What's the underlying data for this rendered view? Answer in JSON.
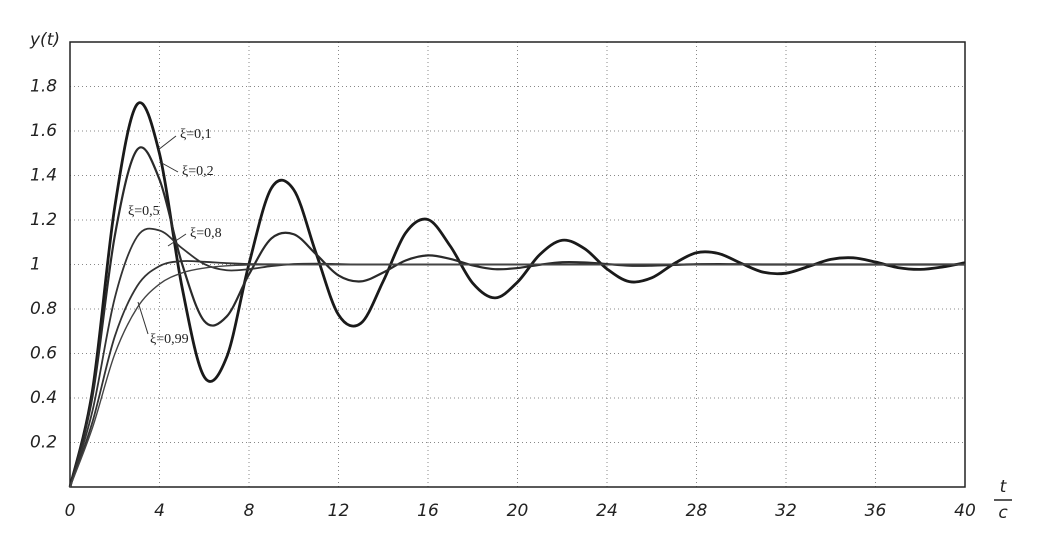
{
  "chart_data": {
    "type": "line",
    "y_label": "y(t)",
    "x_label_top": "t",
    "x_label_bottom": "c",
    "x": [
      0,
      1,
      2,
      3,
      4,
      5,
      6,
      7,
      8,
      9,
      10,
      11,
      12,
      13,
      14,
      15,
      16,
      17,
      18,
      19,
      20,
      21,
      22,
      23,
      24,
      25,
      26,
      27,
      28,
      29,
      30,
      31,
      32,
      33,
      34,
      35,
      36,
      37,
      38,
      39,
      40
    ],
    "series": [
      {
        "name": "ξ=0,1",
        "color": "#1a1a1a",
        "values": [
          0,
          0.431,
          1.258,
          1.72,
          1.498,
          0.902,
          0.495,
          0.583,
          1.003,
          1.343,
          1.336,
          1.05,
          0.774,
          0.736,
          0.925,
          1.142,
          1.202,
          1.082,
          0.916,
          0.85,
          0.921,
          1.045,
          1.109,
          1.071,
          0.98,
          0.923,
          0.94,
          1.004,
          1.053,
          1.049,
          1.005,
          0.965,
          0.961,
          0.991,
          1.023,
          1.03,
          1.011,
          0.986,
          0.978,
          0.989,
          1.008
        ]
      },
      {
        "name": "ξ=0,2",
        "color": "#2a2a2a",
        "values": [
          0,
          0.405,
          1.128,
          1.516,
          1.382,
          1.006,
          0.746,
          0.766,
          0.956,
          1.117,
          1.136,
          1.046,
          0.951,
          0.924,
          0.964,
          1.018,
          1.041,
          1.025,
          0.996,
          0.979,
          0.984,
          0.999,
          1.01,
          1.009,
          1.002,
          0.995,
          0.995,
          0.998,
          1.001,
          1.002,
          1.001,
          1,
          1,
          1,
          1,
          1,
          1,
          1,
          1,
          1,
          1
        ]
      },
      {
        "name": "ξ=0,5",
        "color": "#333333",
        "values": [
          0,
          0.34,
          0.849,
          1.125,
          1.153,
          1.074,
          1.002,
          0.974,
          0.979,
          0.993,
          1.002,
          1.004,
          1.002,
          1,
          1,
          1,
          1,
          1,
          1,
          1,
          1,
          1,
          1,
          1,
          1,
          1,
          1,
          1,
          1,
          1,
          1,
          1,
          1,
          1,
          1,
          1,
          1,
          1,
          1,
          1,
          1
        ]
      },
      {
        "name": "ξ=0,8",
        "color": "#333333",
        "values": [
          0,
          0.291,
          0.676,
          0.903,
          0.993,
          1.015,
          1.012,
          1.006,
          1.002,
          1.001,
          1,
          1,
          1,
          1,
          1,
          1,
          1,
          1,
          1,
          1,
          1,
          1,
          1,
          1,
          1,
          1,
          1,
          1,
          1,
          1,
          1,
          1,
          1,
          1,
          1,
          1,
          1,
          1,
          1,
          1,
          1
        ]
      },
      {
        "name": "ξ=0,99",
        "color": "#444444",
        "values": [
          0,
          0.265,
          0.597,
          0.805,
          0.912,
          0.962,
          0.984,
          0.994,
          0.998,
          0.999,
          1,
          1,
          1,
          1,
          1,
          1,
          1,
          1,
          1,
          1,
          1,
          1,
          1,
          1,
          1,
          1,
          1,
          1,
          1,
          1,
          1,
          1,
          1,
          1,
          1,
          1,
          1,
          1,
          1,
          1,
          1
        ]
      }
    ],
    "xlim": [
      0,
      40
    ],
    "xticks": [
      0,
      4,
      8,
      12,
      16,
      20,
      24,
      28,
      32,
      36,
      40
    ],
    "ylim": [
      0,
      2
    ],
    "yticks": [
      0.2,
      0.4,
      0.6,
      0.8,
      1,
      1.2,
      1.4,
      1.6,
      1.8
    ],
    "grid": true
  }
}
